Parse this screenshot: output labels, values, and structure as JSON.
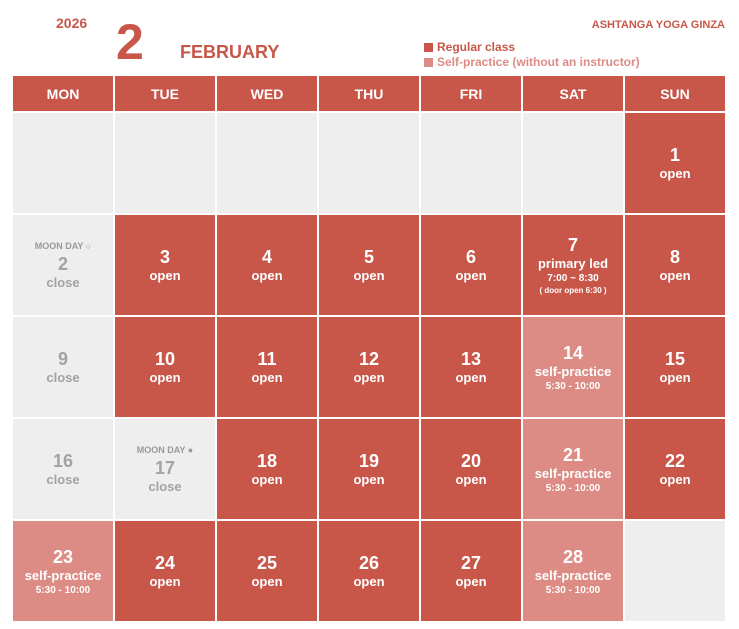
{
  "header": {
    "year": "2026",
    "month_number": "2",
    "month_name": "FEBRUARY",
    "studio": "ASHTANGA YOGA GINZA"
  },
  "legend": [
    {
      "label": "Regular class",
      "color": "#c8574a"
    },
    {
      "label": "Self-practice (without an instructor)",
      "color": "#dc8c84"
    }
  ],
  "colors": {
    "regular": "#c8574a",
    "self_practice": "#dc8c84",
    "closed": "#eeeeee"
  },
  "weekdays": [
    "MON",
    "TUE",
    "WED",
    "THU",
    "FRI",
    "SAT",
    "SUN"
  ],
  "cells": [
    {
      "type": "empty"
    },
    {
      "type": "empty"
    },
    {
      "type": "empty"
    },
    {
      "type": "empty"
    },
    {
      "type": "empty"
    },
    {
      "type": "empty"
    },
    {
      "type": "open",
      "day": "1",
      "status": "open"
    },
    {
      "type": "close",
      "day": "2",
      "status": "close",
      "moon": "MOON DAY ○"
    },
    {
      "type": "open",
      "day": "3",
      "status": "open"
    },
    {
      "type": "open",
      "day": "4",
      "status": "open"
    },
    {
      "type": "open",
      "day": "5",
      "status": "open"
    },
    {
      "type": "open",
      "day": "6",
      "status": "open"
    },
    {
      "type": "open",
      "day": "7",
      "status": "primary led",
      "time": "7:00 ~ 8:30",
      "note": "( door open 6:30 )"
    },
    {
      "type": "open",
      "day": "8",
      "status": "open"
    },
    {
      "type": "close",
      "day": "9",
      "status": "close"
    },
    {
      "type": "open",
      "day": "10",
      "status": "open"
    },
    {
      "type": "open",
      "day": "11",
      "status": "open"
    },
    {
      "type": "open",
      "day": "12",
      "status": "open"
    },
    {
      "type": "open",
      "day": "13",
      "status": "open"
    },
    {
      "type": "self",
      "day": "14",
      "status": "self-practice",
      "time": "5:30 - 10:00"
    },
    {
      "type": "open",
      "day": "15",
      "status": "open"
    },
    {
      "type": "close",
      "day": "16",
      "status": "close"
    },
    {
      "type": "close",
      "day": "17",
      "status": "close",
      "moon": "MOON DAY ●"
    },
    {
      "type": "open",
      "day": "18",
      "status": "open"
    },
    {
      "type": "open",
      "day": "19",
      "status": "open"
    },
    {
      "type": "open",
      "day": "20",
      "status": "open"
    },
    {
      "type": "self",
      "day": "21",
      "status": "self-practice",
      "time": "5:30 - 10:00"
    },
    {
      "type": "open",
      "day": "22",
      "status": "open"
    },
    {
      "type": "self",
      "day": "23",
      "status": "self-practice",
      "time": "5:30 - 10:00"
    },
    {
      "type": "open",
      "day": "24",
      "status": "open"
    },
    {
      "type": "open",
      "day": "25",
      "status": "open"
    },
    {
      "type": "open",
      "day": "26",
      "status": "open"
    },
    {
      "type": "open",
      "day": "27",
      "status": "open"
    },
    {
      "type": "self",
      "day": "28",
      "status": "self-practice",
      "time": "5:30 - 10:00"
    },
    {
      "type": "empty"
    }
  ]
}
